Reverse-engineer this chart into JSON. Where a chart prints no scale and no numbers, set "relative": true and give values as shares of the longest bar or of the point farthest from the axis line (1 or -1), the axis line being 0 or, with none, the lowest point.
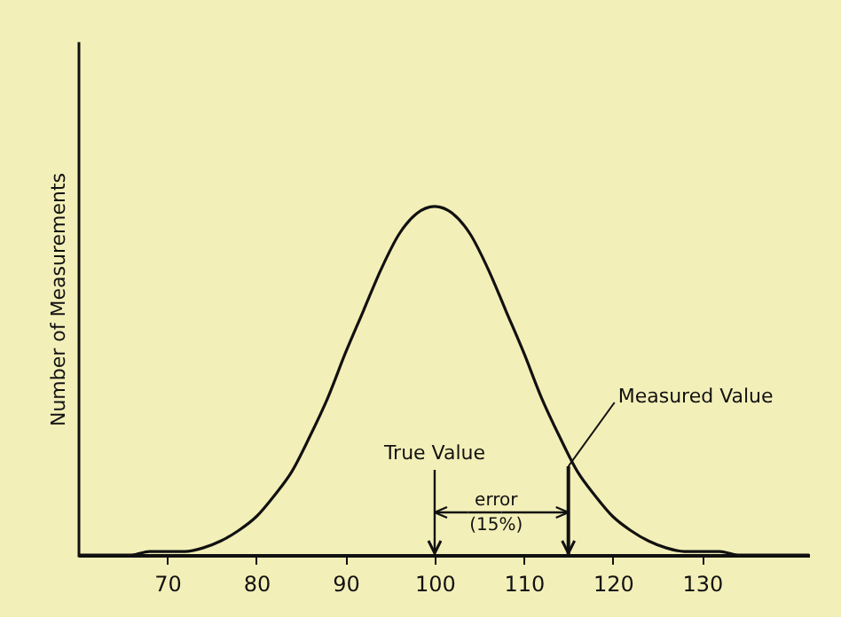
{
  "chart_data": {
    "type": "line",
    "relative": true,
    "ylabel": "Number of Measurements",
    "x": [
      60,
      62,
      64,
      66,
      68,
      70,
      72,
      74,
      76,
      78,
      80,
      82,
      84,
      86,
      88,
      90,
      92,
      94,
      96,
      98,
      100,
      102,
      104,
      106,
      108,
      110,
      112,
      114,
      116,
      118,
      120,
      122,
      124,
      126,
      128,
      130,
      132,
      134,
      136,
      138,
      140,
      142
    ],
    "series": [
      {
        "color": "#111111",
        "values": [
          0,
          0,
          0,
          0,
          0.01,
          0.01,
          0.01,
          0.02,
          0.04,
          0.07,
          0.11,
          0.17,
          0.24,
          0.34,
          0.45,
          0.58,
          0.7,
          0.82,
          0.92,
          0.98,
          1,
          0.98,
          0.92,
          0.82,
          0.7,
          0.58,
          0.45,
          0.34,
          0.24,
          0.17,
          0.11,
          0.07,
          0.04,
          0.02,
          0.01,
          0.01,
          0.01,
          0,
          0,
          0,
          0,
          0
        ]
      }
    ],
    "xlim": [
      60,
      142
    ],
    "xticks": [
      70,
      80,
      90,
      100,
      110,
      120,
      130
    ],
    "ref_lines": [
      {
        "axis": "x",
        "value": 100,
        "label": "True Value"
      },
      {
        "axis": "x",
        "value": 115,
        "label": "Measured Value"
      }
    ],
    "annotations": [
      "error\n(15%)"
    ]
  }
}
